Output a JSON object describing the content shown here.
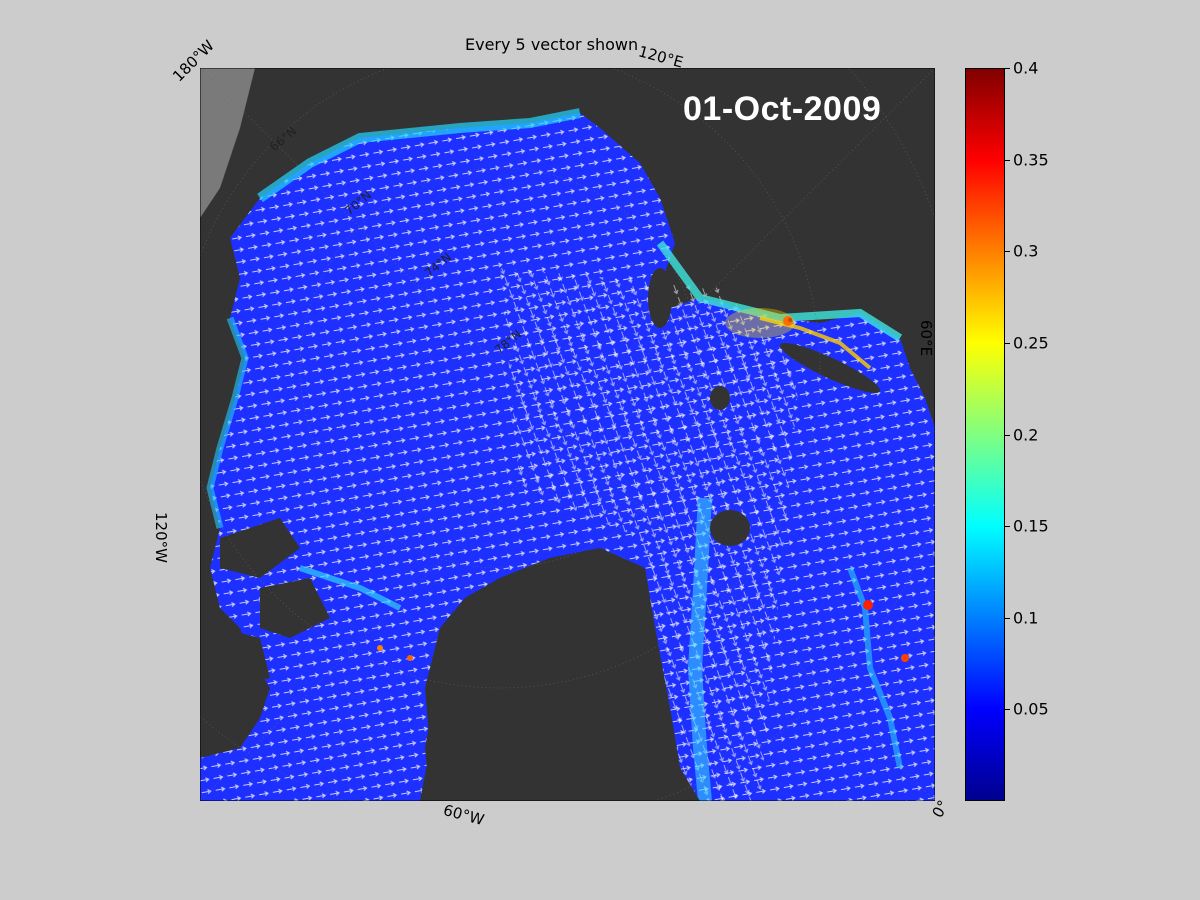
{
  "title": "Every 5 vector shown",
  "date": "01-Oct-2009",
  "longitude_labels": {
    "lon_180w": "180°W",
    "lon_120e": "120°E",
    "lon_60e": "60°E",
    "lon_120w": "120°W",
    "lon_60w": "60°W",
    "lon_0": "0°"
  },
  "latitude_labels": [
    "66°N",
    "70°N",
    "74°N",
    "78°N"
  ],
  "colorbar": {
    "colormap": "jet",
    "min": 0,
    "max": 0.4,
    "ticks": [
      "0.4",
      "0.35",
      "0.3",
      "0.25",
      "0.2",
      "0.15",
      "0.1",
      "0.05"
    ],
    "tick_values": [
      0.4,
      0.35,
      0.3,
      0.25,
      0.2,
      0.15,
      0.1,
      0.05
    ]
  },
  "colors": {
    "figure_background": "#cccccc",
    "land": "#333333",
    "ocean_field": "#1f2cff",
    "vectors": "#ffffff",
    "high_speed": "#ff2000"
  }
}
